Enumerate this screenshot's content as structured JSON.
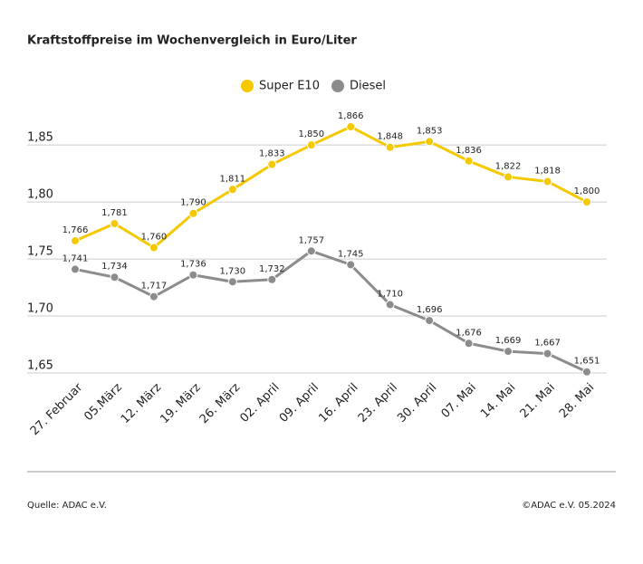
{
  "chart_data": {
    "type": "line",
    "title": "Kraftstoffpreise im Wochenvergleich in Euro/Liter",
    "categories": [
      "27. Februar",
      "05.März",
      "12. März",
      "19. März",
      "26. März",
      "02. April",
      "09. April",
      "16. April",
      "23. April",
      "30. April",
      "07. Mai",
      "14. Mai",
      "21. Mai",
      "28. Mai"
    ],
    "series": [
      {
        "name": "Super E10",
        "color": "#f5c800",
        "values": [
          1.766,
          1.781,
          1.76,
          1.79,
          1.811,
          1.833,
          1.85,
          1.866,
          1.848,
          1.853,
          1.836,
          1.822,
          1.818,
          1.8
        ],
        "value_labels": [
          "1,766",
          "1,781",
          "1,760",
          "1,790",
          "1,811",
          "1,833",
          "1,850",
          "1,866",
          "1,848",
          "1,853",
          "1,836",
          "1,822",
          "1,818",
          "1,800"
        ]
      },
      {
        "name": "Diesel",
        "color": "#8c8c8c",
        "values": [
          1.741,
          1.734,
          1.717,
          1.736,
          1.73,
          1.732,
          1.757,
          1.745,
          1.71,
          1.696,
          1.676,
          1.669,
          1.667,
          1.651
        ],
        "value_labels": [
          "1,741",
          "1,734",
          "1,717",
          "1,736",
          "1,730",
          "1,732",
          "1,757",
          "1,745",
          "1,710",
          "1,696",
          "1,676",
          "1,669",
          "1,667",
          "1,651"
        ]
      }
    ],
    "ylim": [
      1.65,
      1.87
    ],
    "yticks": [
      {
        "value": 1.65,
        "label": "1,65"
      },
      {
        "value": 1.7,
        "label": "1,70"
      },
      {
        "value": 1.75,
        "label": "1,75"
      },
      {
        "value": 1.8,
        "label": "1,80"
      },
      {
        "value": 1.85,
        "label": "1,85"
      }
    ],
    "grid": true,
    "legend": "top",
    "source": "Quelle: ADAC e.V.",
    "copyright": "©ADAC e.V. 05.2024"
  }
}
